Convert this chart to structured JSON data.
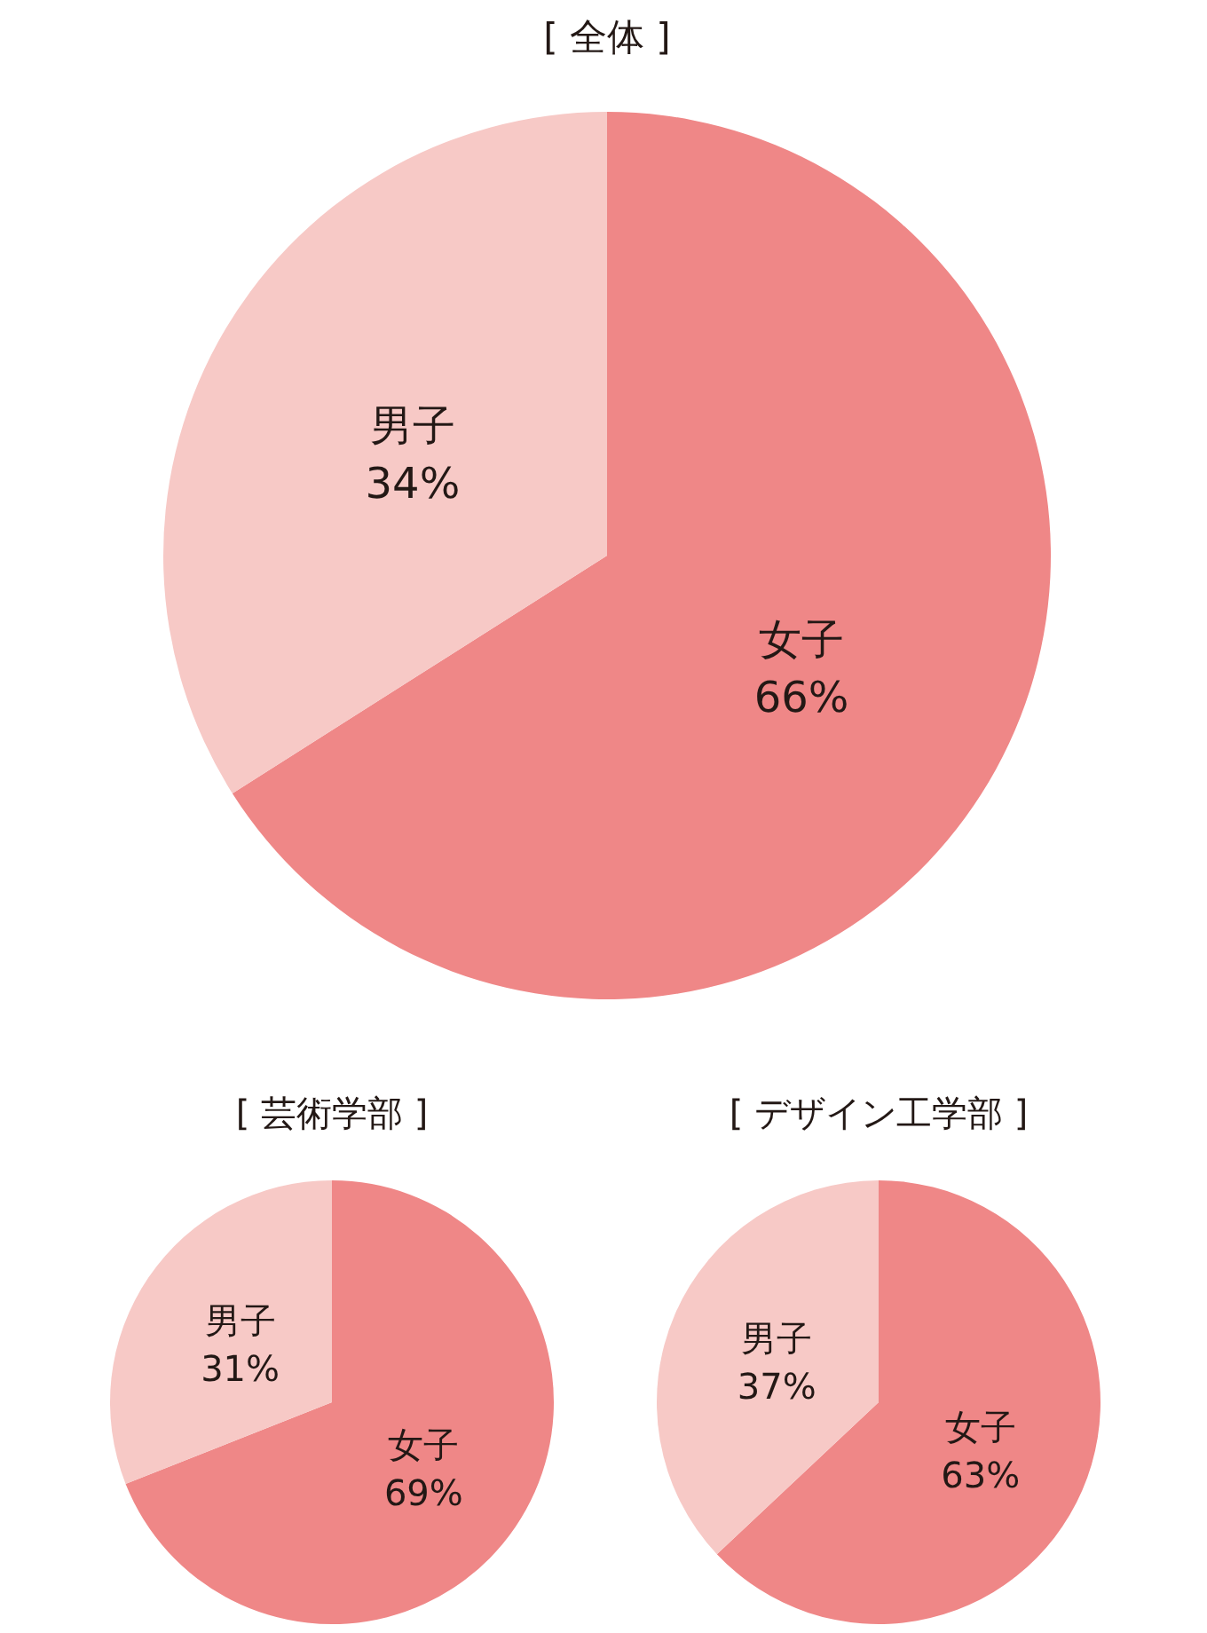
{
  "chart_data": [
    {
      "type": "pie",
      "title": "[ 全体 ]",
      "categories": [
        "女子",
        "男子"
      ],
      "values": [
        66,
        34
      ],
      "value_labels": [
        "66%",
        "34%"
      ],
      "colors": [
        "#ef8787",
        "#f7c9c6"
      ]
    },
    {
      "type": "pie",
      "title": "[ 芸術学部 ]",
      "categories": [
        "女子",
        "男子"
      ],
      "values": [
        69,
        31
      ],
      "value_labels": [
        "69%",
        "31%"
      ],
      "colors": [
        "#ef8787",
        "#f7c9c6"
      ]
    },
    {
      "type": "pie",
      "title": "[ デザイン工学部 ]",
      "categories": [
        "女子",
        "男子"
      ],
      "values": [
        63,
        37
      ],
      "value_labels": [
        "63%",
        "37%"
      ],
      "colors": [
        "#ef8787",
        "#f7c9c6"
      ]
    }
  ]
}
